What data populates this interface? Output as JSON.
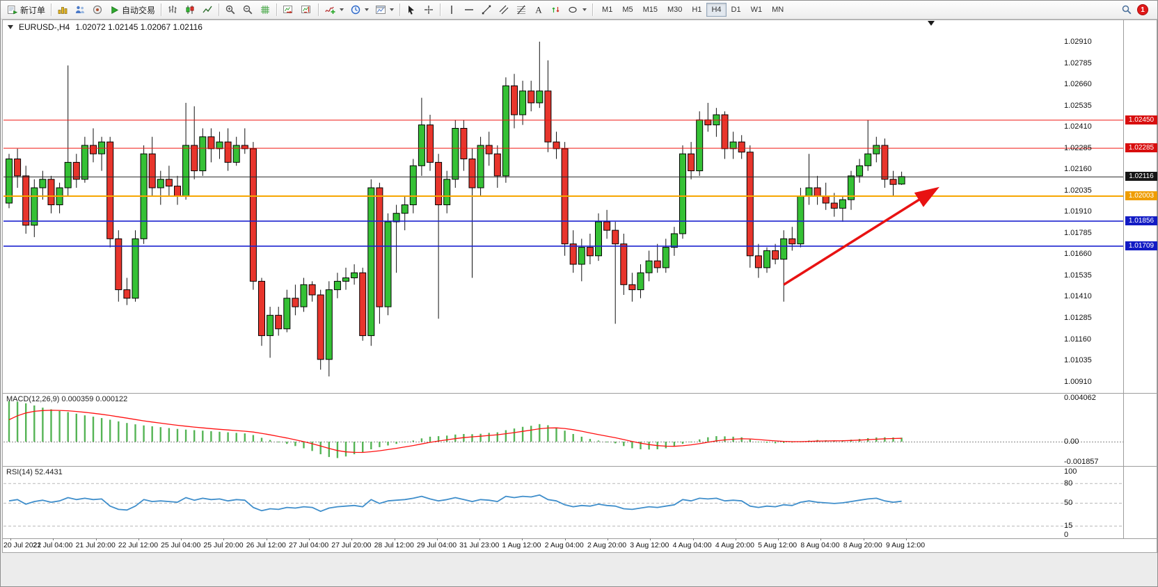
{
  "toolbar": {
    "new_order_label": "新订单",
    "autotrading_label": "自动交易",
    "text_tool_glyph": "A",
    "timeframes": [
      "M1",
      "M5",
      "M15",
      "M30",
      "H1",
      "H4",
      "D1",
      "W1",
      "MN"
    ],
    "active_timeframe": "H4",
    "notification_count": "1"
  },
  "chart": {
    "symbol_title": "EURUSD-,H4",
    "ohlc": "1.02072 1.02145 1.02067 1.02116"
  },
  "chart_data": {
    "type": "candlestick",
    "symbol": "EURUSD-",
    "timeframe": "H4",
    "ohlc_display": {
      "open": 1.02072,
      "high": 1.02145,
      "low": 1.02067,
      "close": 1.02116
    },
    "price_axis": {
      "max": 1.02967,
      "min": 1.00855,
      "ticks": [
        "1.02910",
        "1.02785",
        "1.02660",
        "1.02535",
        "1.02410",
        "1.02285",
        "1.02160",
        "1.02035",
        "1.01910",
        "1.01785",
        "1.01660",
        "1.01535",
        "1.01410",
        "1.01285",
        "1.01160",
        "1.01035",
        "1.00910"
      ]
    },
    "time_axis": [
      "20 Jul 2022",
      "21 Jul 04:00",
      "21 Jul 20:00",
      "22 Jul 12:00",
      "25 Jul 04:00",
      "25 Jul 20:00",
      "26 Jul 12:00",
      "27 Jul 04:00",
      "27 Jul 20:00",
      "28 Jul 12:00",
      "29 Jul 04:00",
      "31 Jul 23:00",
      "1 Aug 12:00",
      "2 Aug 04:00",
      "2 Aug 20:00",
      "3 Aug 12:00",
      "4 Aug 04:00",
      "4 Aug 20:00",
      "5 Aug 12:00",
      "8 Aug 04:00",
      "8 Aug 20:00",
      "9 Aug 12:00"
    ],
    "candles": [
      [
        1.0196,
        1.0225,
        1.0193,
        1.0222
      ],
      [
        1.0222,
        1.0228,
        1.0205,
        1.0212
      ],
      [
        1.0212,
        1.0218,
        1.0178,
        1.0183
      ],
      [
        1.0183,
        1.021,
        1.0176,
        1.0205
      ],
      [
        1.0205,
        1.0215,
        1.0198,
        1.021
      ],
      [
        1.021,
        1.0212,
        1.019,
        1.0195
      ],
      [
        1.0195,
        1.0208,
        1.019,
        1.0205
      ],
      [
        1.0205,
        1.0277,
        1.02,
        1.022
      ],
      [
        1.022,
        1.0225,
        1.0205,
        1.021
      ],
      [
        1.021,
        1.0235,
        1.0208,
        1.023
      ],
      [
        1.023,
        1.024,
        1.022,
        1.0225
      ],
      [
        1.0225,
        1.0235,
        1.0215,
        1.0232
      ],
      [
        1.0232,
        1.0235,
        1.017,
        1.0175
      ],
      [
        1.0175,
        1.018,
        1.0138,
        1.0145
      ],
      [
        1.0145,
        1.0152,
        1.0136,
        1.014
      ],
      [
        1.014,
        1.018,
        1.0138,
        1.0175
      ],
      [
        1.0175,
        1.023,
        1.0172,
        1.0225
      ],
      [
        1.0225,
        1.0235,
        1.02,
        1.0205
      ],
      [
        1.0205,
        1.0215,
        1.0195,
        1.021
      ],
      [
        1.021,
        1.0218,
        1.02,
        1.0206
      ],
      [
        1.0206,
        1.0212,
        1.0195,
        1.02
      ],
      [
        1.02,
        1.0255,
        1.0198,
        1.023
      ],
      [
        1.023,
        1.0253,
        1.021,
        1.0215
      ],
      [
        1.0215,
        1.024,
        1.0212,
        1.0235
      ],
      [
        1.0235,
        1.024,
        1.022,
        1.0228
      ],
      [
        1.0228,
        1.0238,
        1.0222,
        1.0232
      ],
      [
        1.0232,
        1.024,
        1.0215,
        1.022
      ],
      [
        1.022,
        1.0235,
        1.0218,
        1.023
      ],
      [
        1.023,
        1.024,
        1.0225,
        1.0228
      ],
      [
        1.0228,
        1.0232,
        1.0145,
        1.015
      ],
      [
        1.015,
        1.0152,
        1.0112,
        1.0118
      ],
      [
        1.0118,
        1.0135,
        1.0105,
        1.013
      ],
      [
        1.013,
        1.0135,
        1.0118,
        1.0122
      ],
      [
        1.0122,
        1.0145,
        1.012,
        1.014
      ],
      [
        1.014,
        1.0148,
        1.013,
        1.0135
      ],
      [
        1.0135,
        1.0152,
        1.0132,
        1.0148
      ],
      [
        1.0148,
        1.015,
        1.0138,
        1.0142
      ],
      [
        1.0142,
        1.0145,
        1.0098,
        1.0104
      ],
      [
        1.0104,
        1.015,
        1.0094,
        1.0145
      ],
      [
        1.0145,
        1.0155,
        1.014,
        1.015
      ],
      [
        1.015,
        1.0158,
        1.0145,
        1.0152
      ],
      [
        1.0152,
        1.016,
        1.0148,
        1.0155
      ],
      [
        1.0155,
        1.0158,
        1.0115,
        1.0118
      ],
      [
        1.0118,
        1.021,
        1.0112,
        1.0205
      ],
      [
        1.0205,
        1.0208,
        1.0125,
        1.0135
      ],
      [
        1.0135,
        1.019,
        1.013,
        1.0185
      ],
      [
        1.0185,
        1.0195,
        1.0155,
        1.019
      ],
      [
        1.019,
        1.02,
        1.018,
        1.0195
      ],
      [
        1.0195,
        1.0222,
        1.019,
        1.0218
      ],
      [
        1.0218,
        1.0258,
        1.0212,
        1.0242
      ],
      [
        1.0242,
        1.0248,
        1.0215,
        1.022
      ],
      [
        1.022,
        1.0225,
        1.0128,
        1.0195
      ],
      [
        1.0195,
        1.0215,
        1.019,
        1.021
      ],
      [
        1.021,
        1.0245,
        1.0205,
        1.024
      ],
      [
        1.024,
        1.0245,
        1.0215,
        1.0222
      ],
      [
        1.0222,
        1.0228,
        1.0152,
        1.0205
      ],
      [
        1.0205,
        1.0235,
        1.02,
        1.023
      ],
      [
        1.023,
        1.0238,
        1.0218,
        1.0225
      ],
      [
        1.0225,
        1.023,
        1.0205,
        1.0212
      ],
      [
        1.0212,
        1.027,
        1.0208,
        1.0265
      ],
      [
        1.0265,
        1.0272,
        1.024,
        1.0248
      ],
      [
        1.0248,
        1.0268,
        1.0242,
        1.0262
      ],
      [
        1.0262,
        1.0268,
        1.025,
        1.0255
      ],
      [
        1.0255,
        1.0291,
        1.0252,
        1.0262
      ],
      [
        1.0262,
        1.028,
        1.0226,
        1.0232
      ],
      [
        1.0232,
        1.0238,
        1.0222,
        1.0228
      ],
      [
        1.0228,
        1.0232,
        1.0165,
        1.0172
      ],
      [
        1.0172,
        1.018,
        1.0155,
        1.016
      ],
      [
        1.016,
        1.0175,
        1.015,
        1.017
      ],
      [
        1.017,
        1.0178,
        1.016,
        1.0165
      ],
      [
        1.0165,
        1.019,
        1.0162,
        1.0185
      ],
      [
        1.0185,
        1.0192,
        1.0175,
        1.018
      ],
      [
        1.018,
        1.0185,
        1.0125,
        1.0172
      ],
      [
        1.0172,
        1.0178,
        1.0142,
        1.0148
      ],
      [
        1.0148,
        1.0155,
        1.0138,
        1.0145
      ],
      [
        1.0145,
        1.016,
        1.014,
        1.0155
      ],
      [
        1.0155,
        1.0168,
        1.015,
        1.0162
      ],
      [
        1.0162,
        1.0172,
        1.0155,
        1.0158
      ],
      [
        1.0158,
        1.0175,
        1.0155,
        1.017
      ],
      [
        1.017,
        1.0182,
        1.0165,
        1.0178
      ],
      [
        1.0178,
        1.023,
        1.0175,
        1.0225
      ],
      [
        1.0225,
        1.0232,
        1.021,
        1.0215
      ],
      [
        1.0215,
        1.025,
        1.0212,
        1.0245
      ],
      [
        1.0245,
        1.0255,
        1.0238,
        1.0242
      ],
      [
        1.0242,
        1.0252,
        1.0235,
        1.0248
      ],
      [
        1.0248,
        1.025,
        1.0222,
        1.0228
      ],
      [
        1.0228,
        1.0238,
        1.0222,
        1.0232
      ],
      [
        1.0232,
        1.0236,
        1.0222,
        1.0226
      ],
      [
        1.0226,
        1.023,
        1.0158,
        1.0165
      ],
      [
        1.0165,
        1.0172,
        1.0152,
        1.0158
      ],
      [
        1.0158,
        1.017,
        1.0155,
        1.0168
      ],
      [
        1.0168,
        1.0172,
        1.016,
        1.0163
      ],
      [
        1.0163,
        1.018,
        1.0138,
        1.0175
      ],
      [
        1.0175,
        1.0182,
        1.0168,
        1.0172
      ],
      [
        1.0172,
        1.0205,
        1.017,
        1.02
      ],
      [
        1.02,
        1.0225,
        1.0195,
        1.0205
      ],
      [
        1.0205,
        1.0212,
        1.0195,
        1.02
      ],
      [
        1.02,
        1.0208,
        1.0192,
        1.0196
      ],
      [
        1.0196,
        1.0202,
        1.0188,
        1.0193
      ],
      [
        1.0193,
        1.02,
        1.0185,
        1.0198
      ],
      [
        1.0198,
        1.0215,
        1.0192,
        1.0212
      ],
      [
        1.0212,
        1.0222,
        1.0208,
        1.0218
      ],
      [
        1.0218,
        1.0245,
        1.0215,
        1.0225
      ],
      [
        1.0225,
        1.0235,
        1.022,
        1.023
      ],
      [
        1.023,
        1.0234,
        1.0205,
        1.021
      ],
      [
        1.021,
        1.0215,
        1.02,
        1.0207
      ],
      [
        1.02072,
        1.02145,
        1.02067,
        1.02116
      ]
    ],
    "levels": [
      {
        "price": 1.0245,
        "label": "1.02450",
        "color": "#f01812",
        "line_width": 1,
        "badge_color": "#d80e0e"
      },
      {
        "price": 1.02285,
        "label": "1.02285",
        "color": "#f01812",
        "line_width": 1,
        "badge_color": "#d80e0e"
      },
      {
        "price": 1.02116,
        "label": "1.02116",
        "color": "#2b2b2b",
        "line_width": 1,
        "badge_color": "#161616"
      },
      {
        "price": 1.02003,
        "label": "1.02003",
        "color": "#f7a600",
        "line_width": 2,
        "badge_color": "#ef9d00"
      },
      {
        "price": 1.01856,
        "label": "1.01856",
        "color": "#1d23cf",
        "line_width": 1.6,
        "badge_color": "#121bc4"
      },
      {
        "price": 1.01709,
        "label": "1.01709",
        "color": "#1d23cf",
        "line_width": 1.6,
        "badge_color": "#121bc4"
      }
    ],
    "trend_arrow": {
      "from": {
        "index": 92,
        "price": 1.0148
      },
      "to": {
        "index": 110,
        "price": 1.0204
      },
      "color": "#e81212"
    },
    "macd": {
      "label": "MACD(12,26,9) 0.000359 0.000122",
      "axis_ticks": [
        "0.004062",
        "0.00",
        "-0.001857"
      ],
      "histogram_color": "#55b455",
      "signal_color": "#ff1010",
      "signal_seed": 0.002,
      "signal_alpha": 0.22,
      "values": [
        0.0037,
        0.00365,
        0.0035,
        0.0033,
        0.0031,
        0.00295,
        0.0028,
        0.0027,
        0.00255,
        0.0024,
        0.00228,
        0.00215,
        0.002,
        0.00185,
        0.0017,
        0.00158,
        0.00148,
        0.0014,
        0.00132,
        0.00124,
        0.00116,
        0.0011,
        0.00105,
        0.001,
        0.00095,
        0.0009,
        0.00085,
        0.0008,
        0.00075,
        0.0006,
        0.00035,
        0.00015,
        -5e-05,
        -0.0002,
        -0.0004,
        -0.0006,
        -0.00085,
        -0.00115,
        -0.0014,
        -0.0015,
        -0.00135,
        -0.00115,
        -0.001,
        -0.0007,
        -0.0005,
        -0.00035,
        -0.0002,
        -5e-05,
        0.0001,
        0.0003,
        0.00045,
        0.0005,
        0.00055,
        0.00065,
        0.0007,
        0.00068,
        0.00072,
        0.0008,
        0.00085,
        0.00105,
        0.0012,
        0.00135,
        0.00145,
        0.0016,
        0.0015,
        0.0013,
        0.001,
        0.0007,
        0.00045,
        0.00025,
        0.0001,
        0.0,
        -0.00015,
        -0.0004,
        -0.0006,
        -0.0007,
        -0.00072,
        -0.0007,
        -0.0006,
        -0.00045,
        -0.0002,
        0.0,
        0.0002,
        0.0004,
        0.0005,
        0.00048,
        0.00045,
        0.0004,
        0.0002,
        0.0,
        -0.0001,
        -0.00015,
        -0.00012,
        -8e-05,
        0.0,
        0.0001,
        0.00015,
        0.00012,
        0.0001,
        0.00012,
        0.00018,
        0.00025,
        0.00032,
        0.00038,
        0.0004,
        0.00038,
        0.000359
      ]
    },
    "rsi": {
      "label": "RSI(14) 52.4431",
      "axis_ticks": [
        "100",
        "80",
        "50",
        "15",
        "0"
      ],
      "dashed_levels": [
        80,
        50,
        15
      ],
      "line_color": "#3f8ecb",
      "values": [
        53,
        55,
        48,
        52,
        54,
        51,
        53,
        58,
        55,
        57,
        55,
        56,
        45,
        40,
        39,
        45,
        55,
        52,
        53,
        52,
        51,
        58,
        54,
        57,
        55,
        56,
        53,
        55,
        54,
        43,
        38,
        41,
        40,
        43,
        42,
        44,
        43,
        37,
        42,
        44,
        45,
        46,
        44,
        55,
        49,
        53,
        54,
        55,
        57,
        60,
        56,
        53,
        55,
        58,
        55,
        52,
        55,
        54,
        52,
        60,
        58,
        60,
        59,
        62,
        55,
        53,
        47,
        44,
        46,
        45,
        48,
        46,
        45,
        41,
        40,
        42,
        44,
        43,
        45,
        47,
        55,
        53,
        57,
        56,
        57,
        53,
        54,
        53,
        45,
        43,
        45,
        44,
        47,
        46,
        51,
        53,
        51,
        50,
        49,
        50,
        52,
        54,
        56,
        57,
        53,
        51,
        52.4431
      ]
    },
    "colors": {
      "up": "#35c135",
      "down": "#e8352c",
      "wick": "#101010",
      "panel_border": "#9c9c9c"
    }
  }
}
